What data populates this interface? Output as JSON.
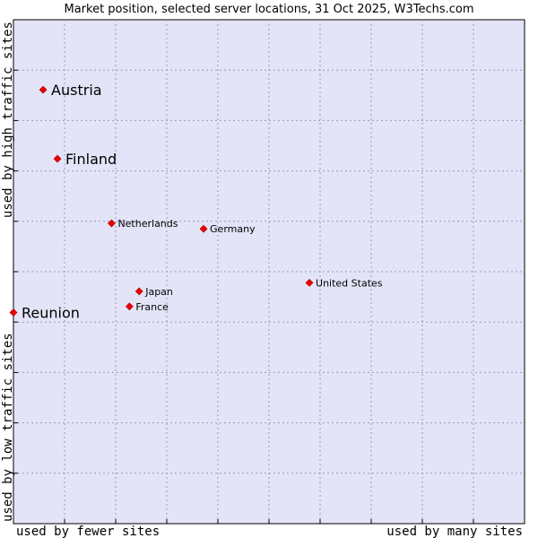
{
  "chart_data": {
    "type": "scatter",
    "title": "Market position, selected server locations, 31 Oct 2025, W3Techs.com",
    "xlabel_left": "used by fewer sites",
    "xlabel_right": "used by many sites",
    "ylabel_bottom": "used by low traffic sites",
    "ylabel_top": "used by high traffic sites",
    "xlim": [
      0,
      100
    ],
    "ylim": [
      0,
      100
    ],
    "grid": true,
    "series": [
      {
        "name": "Austria",
        "x": 5.8,
        "y": 86.1,
        "label_size": "large"
      },
      {
        "name": "Finland",
        "x": 8.6,
        "y": 72.4,
        "label_size": "large"
      },
      {
        "name": "Netherlands",
        "x": 19.2,
        "y": 59.6,
        "label_size": "small"
      },
      {
        "name": "Germany",
        "x": 37.2,
        "y": 58.5,
        "label_size": "small"
      },
      {
        "name": "United States",
        "x": 57.9,
        "y": 47.8,
        "label_size": "small"
      },
      {
        "name": "Japan",
        "x": 24.6,
        "y": 46.1,
        "label_size": "small"
      },
      {
        "name": "France",
        "x": 22.7,
        "y": 43.1,
        "label_size": "small"
      },
      {
        "name": "Reunion",
        "x": 0.0,
        "y": 41.9,
        "label_size": "large"
      }
    ],
    "colors": {
      "plot_bg": "#e4e4f8",
      "grid": "#9a9ab8",
      "marker": "#ee0000",
      "text": "#000000"
    }
  }
}
